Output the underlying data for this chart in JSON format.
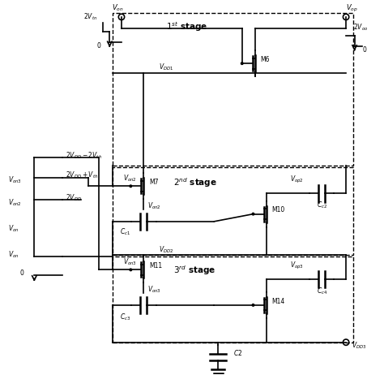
{
  "title": "",
  "bg_color": "#ffffff",
  "fig_width": 4.74,
  "fig_height": 4.62,
  "dpi": 100,
  "labels": {
    "Von": "$V_{on}$",
    "Vop": "$V_{op}$",
    "Von2": "$V_{on2}$",
    "Von3": "$V_{on3}$",
    "Vop2": "$V_{op2}$",
    "VDD1": "$V_{DD1}$",
    "VDD2": "$V_{DD2}$",
    "VDD3": "$V_{DD3}$",
    "Vop3": "$V_{op3}$",
    "stage1": "$1^{st}$ stage",
    "stage2": "$2^{nd}$ stage",
    "stage3": "$3^{rd}$ stage",
    "M6": "M6",
    "M7": "M7",
    "M10": "M10",
    "M11": "M11",
    "M14": "M14",
    "Cc1": "$C_{c1}$",
    "Cc2": "$C_{c2}$",
    "Cc3": "$C_{c3}$",
    "Cc4": "$C_{c4}$",
    "C2": "$C2$",
    "lv1": "$2V_{tn}$",
    "lv2": "$2V_{oo}$",
    "lv3": "0",
    "lv4": "$2V_{DD}-2V_{th}$",
    "lv5": "$2V_{DD}+V_{th}$",
    "lv6": "$2V_{DD}$",
    "lv_von3": "$V_{on3}$",
    "lv_von2": "$V_{on2}$",
    "lv_vonl": "$V_{on}$"
  }
}
